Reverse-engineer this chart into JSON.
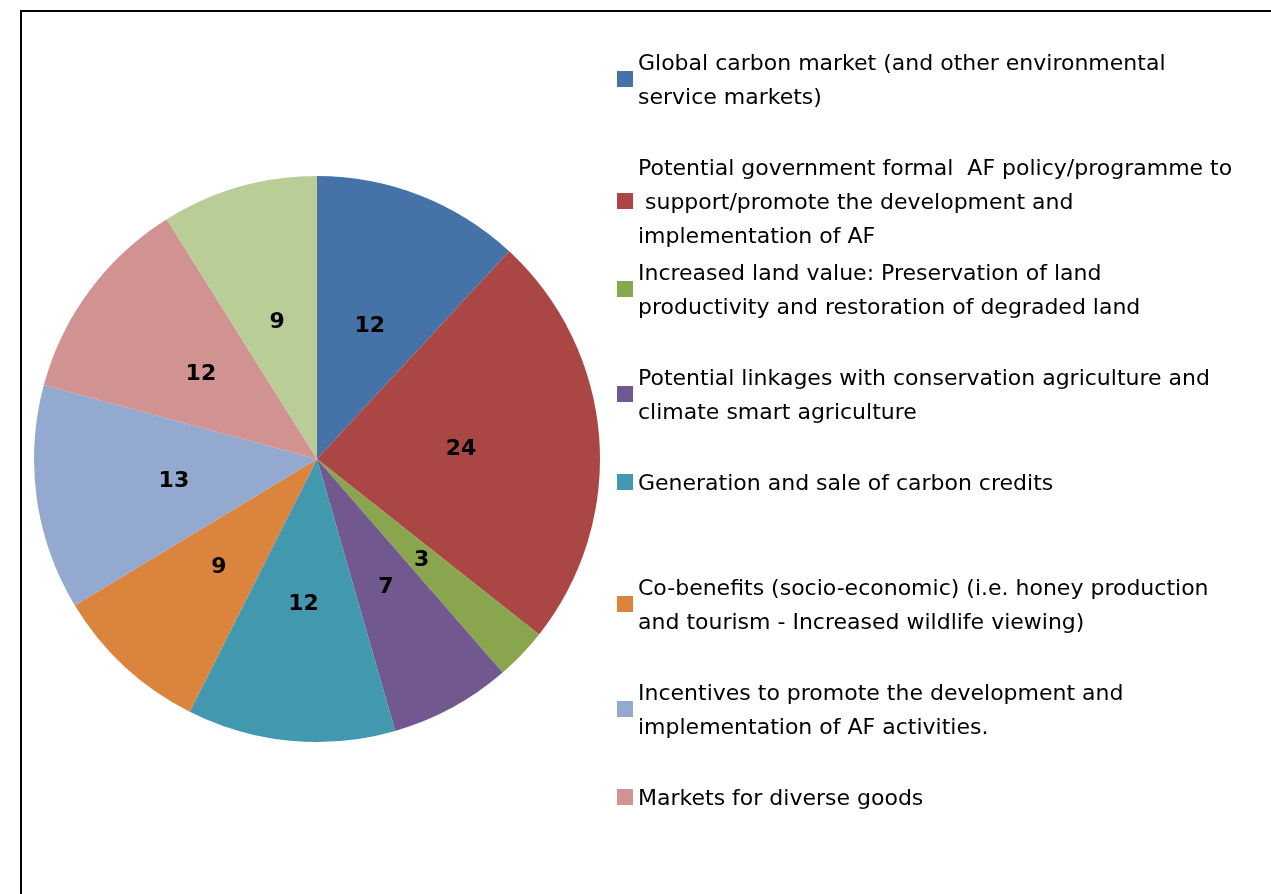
{
  "chart_data": {
    "type": "pie",
    "categories": [
      "Global carbon market (and other environmental service markets)",
      "Potential government formal  AF policy/programme to support/promote the development and implementation of AF",
      "Increased land value: Preservation of land productivity and restoration of degraded land",
      "Potential linkages with conservation agriculture and climate smart agriculture",
      "Generation and sale of carbon credits",
      "Co-benefits (socio-economic) (i.e. honey production and tourism - Increased wildlife viewing)",
      "Incentives to promote the development and implementation of AF activities.",
      "Markets for diverse goods",
      null
    ],
    "values": [
      12,
      24,
      3,
      7,
      12,
      9,
      13,
      12,
      9
    ],
    "colors": [
      "#4572a7",
      "#aa4643",
      "#89a54e",
      "#71588f",
      "#4198af",
      "#db843d",
      "#93a9cf",
      "#d19392",
      "#b9cd96"
    ],
    "data_labels": true,
    "legend": "right"
  }
}
